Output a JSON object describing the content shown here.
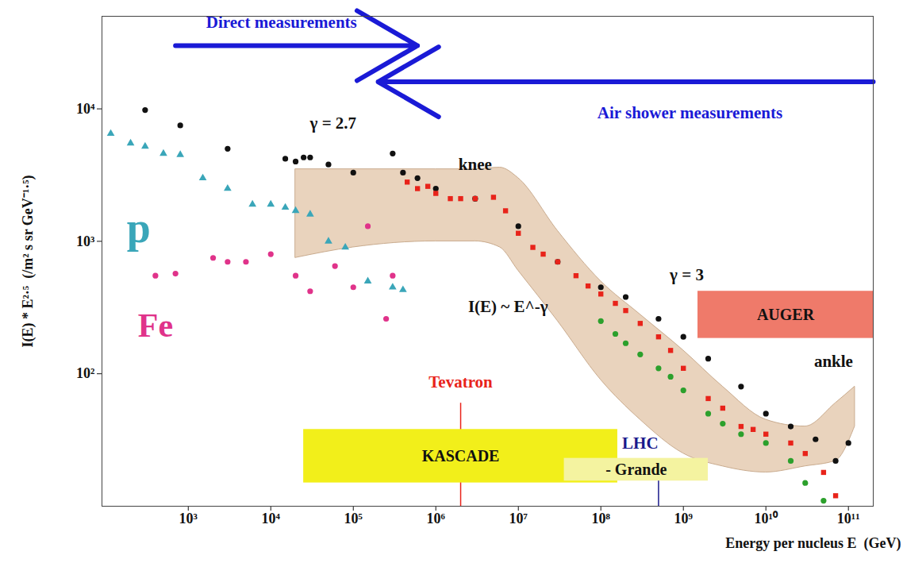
{
  "chart_data": {
    "type": "scatter",
    "log": true,
    "grid": false,
    "xlabel": "Energy per nucleus E  (GeV)",
    "ylabel": "I(E) * E²·⁵  (/m² s sr GeV⁻¹·⁵)",
    "xlim": [
      90,
      200000000000
    ],
    "ylim": [
      10,
      50000
    ],
    "xticks": [
      {
        "value": 1000,
        "label": "10³"
      },
      {
        "value": 10000,
        "label": "10⁴"
      },
      {
        "value": 100000,
        "label": "10⁵"
      },
      {
        "value": 1000000,
        "label": "10⁶"
      },
      {
        "value": 10000000,
        "label": "10⁷"
      },
      {
        "value": 100000000,
        "label": "10⁸"
      },
      {
        "value": 1000000000,
        "label": "10⁹"
      },
      {
        "value": 10000000000,
        "label": "10¹⁰"
      },
      {
        "value": 100000000000,
        "label": "10¹¹"
      }
    ],
    "yticks": [
      {
        "value": 100,
        "label": "10²"
      },
      {
        "value": 1000,
        "label": "10³"
      },
      {
        "value": 10000,
        "label": "10⁴"
      }
    ],
    "band": {
      "color": "#e9d3bd",
      "x": [
        20000,
        100000,
        1000000,
        3000000,
        6000000,
        10000000,
        30000000,
        100000000,
        300000000,
        1000000000,
        3000000000,
        10000000000,
        30000000000,
        70000000000,
        120000000000
      ],
      "low": [
        750,
        900,
        1000,
        1000,
        900,
        600,
        250,
        90,
        45,
        25,
        20,
        18,
        20,
        22,
        40
      ],
      "high": [
        3500,
        3500,
        3500,
        3500,
        3600,
        3000,
        1200,
        500,
        280,
        150,
        80,
        45,
        40,
        60,
        80
      ]
    },
    "series": [
      {
        "color": "#3aa6b9",
        "marker": "triangle",
        "x": [
          115,
          200,
          300,
          500,
          800,
          1500,
          3000,
          6000,
          10000,
          15000,
          20000,
          30000,
          50000,
          80000,
          150000,
          300000,
          400000
        ],
        "values": [
          6500,
          5500,
          5200,
          4600,
          4500,
          3000,
          2500,
          1900,
          1900,
          1800,
          1700,
          1600,
          1000,
          900,
          500,
          450,
          430
        ]
      },
      {
        "color": "#e0338a",
        "marker": "circle",
        "x": [
          400,
          700,
          2000,
          3000,
          5000,
          10000,
          20000,
          30000,
          60000,
          100000,
          150000,
          250000,
          300000
        ],
        "values": [
          550,
          570,
          750,
          700,
          700,
          800,
          550,
          420,
          650,
          450,
          1300,
          260,
          550
        ]
      },
      {
        "color": "#111111",
        "marker": "circle",
        "x": [
          300,
          800,
          3000,
          15000,
          20000,
          25000,
          30000,
          50000,
          100000,
          300000,
          400000,
          600000,
          1000000,
          3000000,
          10000000,
          30000000,
          100000000,
          200000000,
          500000000,
          1000000000,
          2000000000,
          5000000000,
          10000000000,
          20000000000,
          40000000000,
          70000000000,
          100000000000
        ],
        "values": [
          9800,
          7500,
          5000,
          4200,
          4000,
          4300,
          4300,
          3800,
          3300,
          4600,
          3300,
          3000,
          2500,
          2100,
          1300,
          700,
          450,
          380,
          260,
          190,
          130,
          80,
          50,
          40,
          32,
          22,
          30
        ]
      },
      {
        "color": "#e8231a",
        "marker": "square",
        "x": [
          450000,
          600000,
          800000,
          1000000,
          1500000,
          2000000,
          3000000,
          5000000,
          7000000,
          10000000,
          15000000,
          20000000,
          30000000,
          50000000,
          70000000,
          100000000,
          150000000,
          200000000,
          300000000,
          500000000,
          700000000,
          1000000000,
          2000000000,
          3000000000,
          5000000000,
          7000000000,
          10000000000,
          20000000000,
          30000000000,
          50000000000,
          70000000000
        ],
        "values": [
          2800,
          2500,
          2600,
          2300,
          2100,
          2100,
          2100,
          2150,
          1700,
          1150,
          900,
          800,
          700,
          550,
          460,
          400,
          340,
          300,
          240,
          190,
          150,
          110,
          65,
          55,
          40,
          38,
          35,
          30,
          25,
          18,
          12
        ]
      },
      {
        "color": "#2ca02c",
        "marker": "circle",
        "x": [
          100000000,
          150000000,
          200000000,
          300000000,
          500000000,
          700000000,
          1000000000,
          2000000000,
          3000000000,
          5000000000,
          10000000000,
          20000000000,
          30000000000,
          50000000000
        ],
        "values": [
          250,
          200,
          170,
          140,
          110,
          95,
          75,
          50,
          42,
          35,
          30,
          22,
          15,
          11
        ]
      }
    ],
    "markers": [
      {
        "x": 2000000,
        "top": 60,
        "color": "#e8231a"
      },
      {
        "x": 500000000,
        "top": 20,
        "color": "#1a1a8c"
      }
    ],
    "regions": [
      {
        "label": "KASCADE",
        "x1": 25000,
        "x2": 160000000,
        "y1": 15,
        "y2": 38,
        "color": "#f2ef1a"
      },
      {
        "label": "- Grande",
        "x1": 36000000,
        "x2": 2000000000,
        "y1": 15.5,
        "y2": 23,
        "color": "#f4f3a0"
      },
      {
        "label": "AUGER",
        "x1": 1500000000,
        "x2": 200000000000,
        "y1": 185,
        "y2": 420,
        "color": "#ef7a6a"
      }
    ],
    "arrows": [
      {
        "x1": 700,
        "x2": 600000,
        "y": 30000,
        "color": "#1a1ad6"
      },
      {
        "x1": 200000000000,
        "x2": 200000,
        "y": 16000,
        "color": "#1a1ad6"
      }
    ],
    "annotations": [
      {
        "text": "Direct measurements",
        "x": 13500,
        "y": 45000,
        "color": "#1a1ad6"
      },
      {
        "text": "Air shower measurements",
        "x": 1200000000,
        "y": 9300,
        "color": "#1a1ad6"
      },
      {
        "text": "γ = 2.7",
        "x": 57000,
        "y": 7800,
        "color": "#111111"
      },
      {
        "text": "knee",
        "x": 3000000,
        "y": 3800,
        "color": "#111111"
      },
      {
        "text": "γ = 3",
        "x": 1100000000,
        "y": 560,
        "color": "#111111"
      },
      {
        "text": "I(E) ~ E^-γ",
        "x": 7500000,
        "y": 320,
        "color": "#111111"
      },
      {
        "text": "ankle",
        "x": 66000000000,
        "y": 123,
        "color": "#111111"
      },
      {
        "text": "p",
        "x": 250,
        "y": 1250,
        "color": "#3aa6b9"
      },
      {
        "text": "Fe",
        "x": 400,
        "y": 230,
        "color": "#e0338a"
      },
      {
        "text": "Tevatron",
        "x": 2000000,
        "y": 87,
        "color": "#e8231a"
      },
      {
        "text": "LHC",
        "x": 300000000,
        "y": 30,
        "color": "#1a1a8c"
      }
    ]
  }
}
